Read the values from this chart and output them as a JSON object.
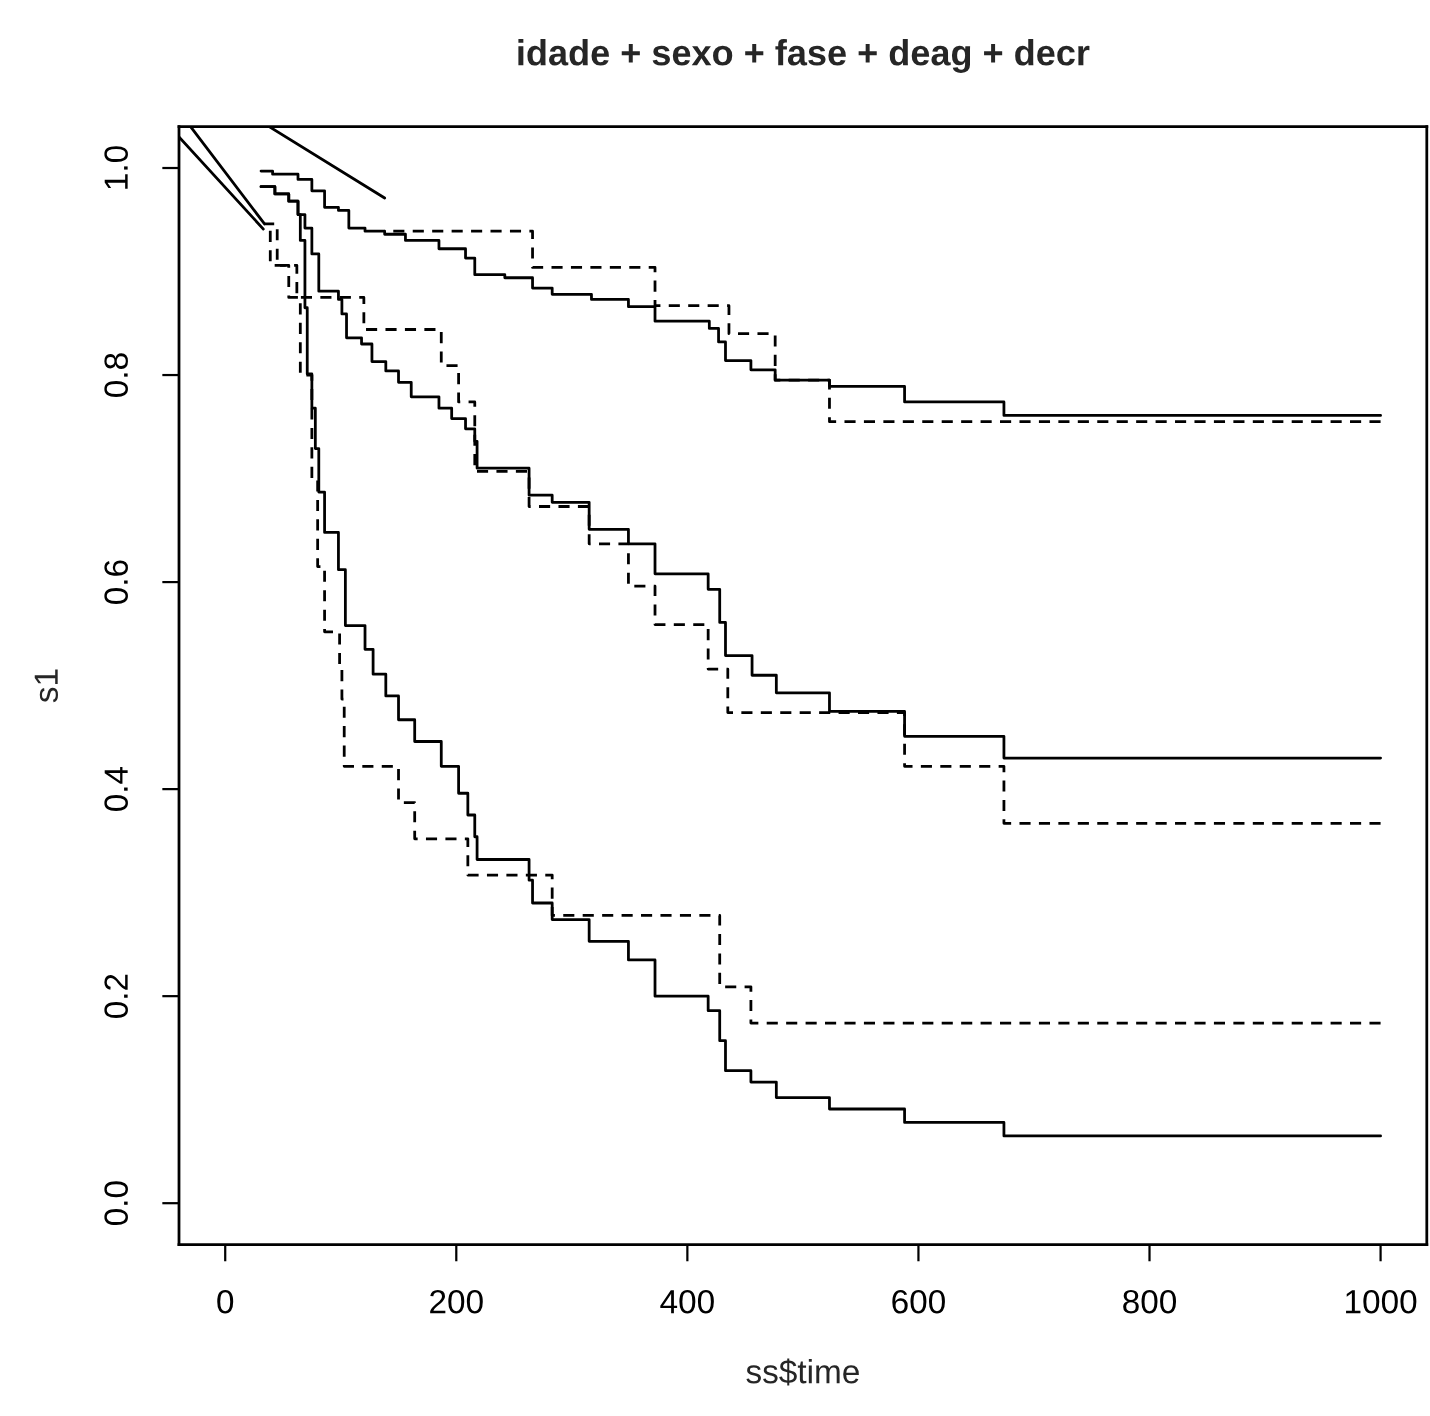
{
  "chart_data": {
    "type": "step",
    "title": "idade + sexo + fase + deag + decr",
    "xlabel": "ss$time",
    "ylabel": "s1",
    "xlim": [
      -40,
      1040
    ],
    "ylim": [
      -0.04,
      1.04
    ],
    "xticks": [
      0,
      200,
      400,
      600,
      800,
      1000
    ],
    "yticks": [
      {
        "value": 0,
        "label": "0.0"
      },
      {
        "value": 0.2,
        "label": "0.2"
      },
      {
        "value": 0.4,
        "label": "0.4"
      },
      {
        "value": 0.6,
        "label": "0.6"
      },
      {
        "value": 0.8,
        "label": "0.8"
      },
      {
        "value": 1.0,
        "label": "1.0"
      }
    ],
    "grid": false,
    "legend": false,
    "series": [
      {
        "type": "line",
        "line_style": "solid",
        "color": "#000000",
        "x": [
          -40,
          33
        ],
        "values": [
          1.03,
          0.941
        ]
      },
      {
        "type": "line",
        "line_style": "solid",
        "color": "#000000",
        "x": [
          -30,
          34
        ],
        "values": [
          1.04,
          0.946
        ]
      },
      {
        "type": "line",
        "line_style": "solid",
        "color": "#000000",
        "x": [
          38,
          138
        ],
        "values": [
          1.04,
          0.971
        ]
      },
      {
        "line_style": "solid",
        "color": "#000000",
        "x": [
          31,
          41,
          63,
          75,
          86,
          98,
          107,
          121,
          138,
          156,
          185,
          208,
          216,
          242,
          266,
          283,
          317,
          349,
          372,
          419,
          427,
          433,
          455,
          476,
          523,
          588,
          674,
          1000
        ],
        "values": [
          0.997,
          0.994,
          0.989,
          0.978,
          0.962,
          0.959,
          0.942,
          0.939,
          0.936,
          0.93,
          0.922,
          0.913,
          0.897,
          0.894,
          0.884,
          0.878,
          0.873,
          0.866,
          0.852,
          0.845,
          0.832,
          0.814,
          0.805,
          0.795,
          0.789,
          0.774,
          0.761,
          0.761
        ]
      },
      {
        "line_style": "dashed",
        "color": "#000000",
        "x": [
          138,
          266,
          372,
          436,
          476,
          523,
          1000
        ],
        "values": [
          0.939,
          0.904,
          0.867,
          0.84,
          0.795,
          0.755,
          0.755
        ]
      },
      {
        "line_style": "solid",
        "color": "#000000",
        "x": [
          31,
          43,
          55,
          63,
          69,
          75,
          81,
          98,
          101,
          105,
          118,
          127,
          139,
          150,
          161,
          185,
          196,
          208,
          216,
          218,
          263,
          283,
          315,
          349,
          372,
          418,
          428,
          433,
          456,
          477,
          523,
          588,
          674,
          1000
        ],
        "values": [
          0.982,
          0.975,
          0.968,
          0.955,
          0.942,
          0.917,
          0.881,
          0.873,
          0.859,
          0.836,
          0.83,
          0.813,
          0.804,
          0.793,
          0.779,
          0.768,
          0.758,
          0.748,
          0.736,
          0.71,
          0.684,
          0.677,
          0.651,
          0.637,
          0.608,
          0.593,
          0.561,
          0.529,
          0.51,
          0.493,
          0.475,
          0.451,
          0.43,
          0.43
        ]
      },
      {
        "line_style": "dashed",
        "color": "#000000",
        "x": [
          33,
          39,
          62,
          120,
          187,
          202,
          216,
          263,
          315,
          349,
          372,
          418,
          435,
          588,
          674,
          1000
        ],
        "values": [
          0.941,
          0.906,
          0.875,
          0.844,
          0.809,
          0.774,
          0.707,
          0.673,
          0.637,
          0.596,
          0.559,
          0.516,
          0.474,
          0.422,
          0.367,
          0.367
        ]
      },
      {
        "line_style": "solid",
        "color": "#000000",
        "x": [
          31,
          43,
          55,
          63,
          65,
          69,
          71,
          75,
          78,
          81,
          86,
          98,
          104,
          121,
          128,
          139,
          150,
          164,
          187,
          202,
          210,
          216,
          218,
          263,
          266,
          283,
          315,
          349,
          372,
          418,
          428,
          433,
          455,
          477,
          523,
          588,
          674,
          1000
        ],
        "values": [
          0.982,
          0.975,
          0.968,
          0.955,
          0.93,
          0.865,
          0.801,
          0.768,
          0.729,
          0.687,
          0.648,
          0.612,
          0.558,
          0.535,
          0.511,
          0.49,
          0.467,
          0.446,
          0.422,
          0.396,
          0.375,
          0.354,
          0.332,
          0.312,
          0.29,
          0.274,
          0.253,
          0.235,
          0.2,
          0.186,
          0.157,
          0.128,
          0.117,
          0.102,
          0.091,
          0.078,
          0.065,
          0.065
        ]
      },
      {
        "line_style": "dashed",
        "color": "#000000",
        "x": [
          34,
          45,
          55,
          65,
          75,
          80,
          86,
          99,
          101,
          103,
          150,
          164,
          210,
          283,
          428,
          455,
          1000
        ],
        "values": [
          0.946,
          0.906,
          0.875,
          0.8,
          0.7,
          0.615,
          0.552,
          0.52,
          0.487,
          0.422,
          0.387,
          0.352,
          0.317,
          0.278,
          0.209,
          0.174,
          0.174
        ]
      }
    ]
  }
}
